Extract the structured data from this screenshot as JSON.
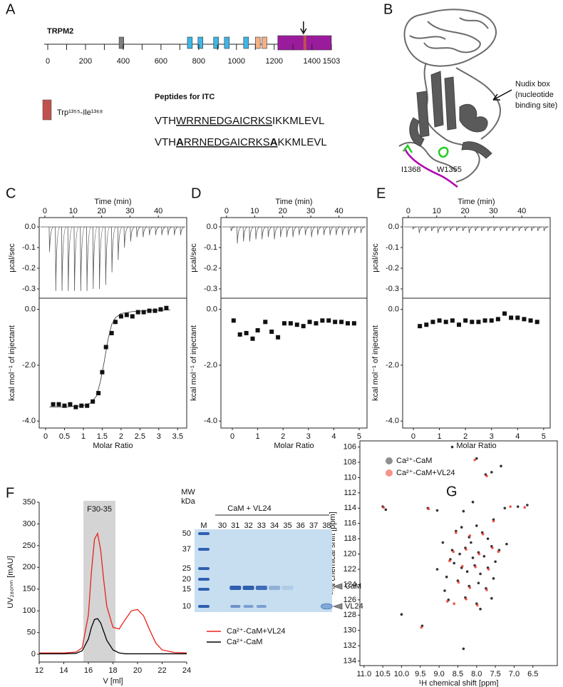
{
  "panel_labels": [
    "A",
    "B",
    "C",
    "D",
    "E",
    "F",
    "G"
  ],
  "domain_map": {
    "protein": "TRPM2",
    "xlim": [
      0,
      1503
    ],
    "xticks": [
      0,
      200,
      400,
      600,
      800,
      1000,
      1200,
      1400,
      1503
    ],
    "minor_ticks": [
      100,
      300,
      500,
      700,
      900,
      1100,
      1300
    ],
    "domains": [
      {
        "start": 378,
        "end": 403,
        "color": "#7f7f7f"
      },
      {
        "start": 740,
        "end": 766,
        "color": "#3fb6e6"
      },
      {
        "start": 796,
        "end": 822,
        "color": "#3fb6e6"
      },
      {
        "start": 879,
        "end": 905,
        "color": "#3fb6e6"
      },
      {
        "start": 936,
        "end": 962,
        "color": "#3fb6e6"
      },
      {
        "start": 1038,
        "end": 1064,
        "color": "#3fb6e6"
      },
      {
        "start": 1100,
        "end": 1126,
        "color": "#f4b183"
      },
      {
        "start": 1135,
        "end": 1161,
        "color": "#f4b183"
      },
      {
        "start": 1219,
        "end": 1503,
        "color": "#9b1b9d"
      },
      {
        "start": 1355,
        "end": 1368,
        "color": "#c0504d"
      }
    ],
    "arrow_at": 1355,
    "legend_label": "Trp¹³⁵⁵-Ile¹³⁶⁸",
    "legend_color": "#c0504d"
  },
  "peptides": {
    "title": "Peptides for ITC",
    "sequences": [
      [
        {
          "text": "VTH"
        },
        {
          "text": "WRRNEDGAICRKS",
          "underline": true
        },
        {
          "text": "IKKMLEVL"
        }
      ],
      [
        {
          "text": "VTH"
        },
        {
          "text": "A",
          "underline": true,
          "bold": true
        },
        {
          "text": "RRNEDGAICRKS",
          "underline": true
        },
        {
          "text": "A",
          "underline": true,
          "bold": true
        },
        {
          "text": "KKMLEVL"
        }
      ]
    ]
  },
  "structure": {
    "annotation": [
      "Nudix box",
      "(nucleotide",
      "binding site)"
    ],
    "labels": [
      "I1368",
      "W1355"
    ]
  },
  "gel": {
    "mw_header": [
      "MW",
      "kDa"
    ],
    "marker_lane": "M",
    "group_label": "CaM + VL24",
    "lanes": [
      "30",
      "31",
      "32",
      "33",
      "34",
      "35",
      "36",
      "37",
      "38"
    ],
    "mw_labels": [
      "50",
      "37",
      "25",
      "20",
      "15",
      "10"
    ],
    "band_labels": [
      "CaM",
      "VL24"
    ]
  },
  "chart_data": [
    {
      "type": "itc-raw",
      "xlabel": "Time (min)",
      "ylabel": "μcal/sec",
      "xlim": [
        -2,
        50
      ],
      "ylim": [
        -0.345,
        0.045
      ],
      "xticks": [
        0,
        10,
        20,
        30,
        40
      ],
      "yticks": [
        {
          "value": 0,
          "label": "0.0"
        },
        -0.1,
        -0.2,
        -0.3
      ],
      "x": [
        1.5,
        3.7,
        5.9,
        8.1,
        10.3,
        12.5,
        14.7,
        16.9,
        19.1,
        21.3,
        23.5,
        25.7,
        27.9,
        30.1,
        32.3,
        34.5,
        36.7,
        38.9,
        41.1,
        43.3,
        45.5,
        47.7
      ],
      "values": [
        -0.12,
        -0.31,
        -0.31,
        -0.31,
        -0.31,
        -0.31,
        -0.31,
        -0.3,
        -0.3,
        -0.28,
        -0.22,
        -0.16,
        -0.1,
        -0.07,
        -0.05,
        -0.05,
        -0.04,
        -0.04,
        -0.04,
        -0.04,
        -0.04,
        -0.04
      ]
    },
    {
      "type": "itc-binding",
      "xlabel": "Molar Ratio",
      "ylabel": "kcal mol⁻¹ of injectant",
      "xlim": [
        -0.17,
        3.74
      ],
      "ylim": [
        -4.25,
        0.4
      ],
      "xticks": [
        0,
        0.5,
        1,
        1.5,
        2,
        2.5,
        3,
        3.5
      ],
      "yticks": [
        {
          "value": 0,
          "label": "0.0"
        },
        {
          "value": -2,
          "label": "-2.0"
        },
        {
          "value": -4,
          "label": "-4.0"
        }
      ],
      "x": [
        0.2,
        0.35,
        0.5,
        0.65,
        0.8,
        0.95,
        1.1,
        1.25,
        1.4,
        1.5,
        1.6,
        1.75,
        1.85,
        2.0,
        2.15,
        2.3,
        2.45,
        2.6,
        2.75,
        2.9,
        3.05,
        3.2
      ],
      "values": [
        -3.4,
        -3.4,
        -3.45,
        -3.4,
        -3.5,
        -3.45,
        -3.45,
        -3.3,
        -3.0,
        -2.25,
        -1.35,
        -0.85,
        -0.45,
        -0.25,
        -0.2,
        -0.25,
        -0.1,
        -0.1,
        -0.05,
        -0.05,
        0.0,
        0.05
      ],
      "fit": {
        "x": [
          0.1,
          0.5,
          1.0,
          1.2,
          1.35,
          1.45,
          1.55,
          1.65,
          1.75,
          1.85,
          2.0,
          2.3,
          2.7,
          3.3
        ],
        "values": [
          -3.5,
          -3.5,
          -3.45,
          -3.35,
          -3.1,
          -2.6,
          -1.9,
          -1.1,
          -0.55,
          -0.3,
          -0.15,
          -0.08,
          -0.04,
          -0.02
        ]
      }
    },
    {
      "type": "itc-raw",
      "xlabel": "Time (min)",
      "ylabel": "μcal/sec",
      "xlim": [
        -2,
        50
      ],
      "ylim": [
        -0.345,
        0.045
      ],
      "xticks": [
        0,
        10,
        20,
        30,
        40
      ],
      "yticks": [
        {
          "value": 0,
          "label": "0.0"
        },
        -0.1,
        -0.2,
        -0.3
      ],
      "x": [
        1.5,
        3.7,
        5.9,
        8.1,
        10.3,
        12.5,
        14.7,
        16.9,
        19.1,
        21.3,
        23.5,
        25.7,
        27.9,
        30.1,
        32.3,
        34.5,
        36.7,
        38.9,
        41.1,
        43.3,
        45.5,
        47.7
      ],
      "values": [
        -0.02,
        -0.08,
        -0.07,
        -0.07,
        -0.06,
        -0.06,
        -0.05,
        -0.06,
        -0.05,
        -0.05,
        -0.05,
        -0.04,
        -0.04,
        -0.05,
        -0.04,
        -0.04,
        -0.04,
        -0.04,
        -0.04,
        -0.04,
        -0.03,
        -0.03
      ]
    },
    {
      "type": "itc-binding",
      "xlabel": "Molar Ratio",
      "ylabel": "kcal mol⁻¹ of injectant",
      "xlim": [
        -0.45,
        5.31
      ],
      "ylim": [
        -4.25,
        0.4
      ],
      "xticks": [
        0,
        1,
        2,
        3,
        4,
        5
      ],
      "yticks": [
        {
          "value": 0,
          "label": "0.0"
        },
        {
          "value": -2,
          "label": "-2.0"
        },
        {
          "value": -4,
          "label": "-4.0"
        }
      ],
      "x": [
        0.05,
        0.3,
        0.55,
        0.8,
        1.0,
        1.3,
        1.55,
        1.8,
        2.05,
        2.3,
        2.55,
        2.8,
        3.05,
        3.3,
        3.55,
        3.8,
        4.05,
        4.3,
        4.55,
        4.8
      ],
      "values": [
        -0.4,
        -0.9,
        -0.85,
        -1.05,
        -0.75,
        -0.45,
        -0.8,
        -1.0,
        -0.5,
        -0.5,
        -0.55,
        -0.6,
        -0.45,
        -0.5,
        -0.4,
        -0.4,
        -0.45,
        -0.45,
        -0.5,
        -0.5
      ]
    },
    {
      "type": "itc-raw",
      "xlabel": "Time (min)",
      "ylabel": "μcal/sec",
      "xlim": [
        -2,
        50
      ],
      "ylim": [
        -0.345,
        0.045
      ],
      "xticks": [
        0,
        10,
        20,
        30,
        40
      ],
      "yticks": [
        {
          "value": 0,
          "label": "0.0"
        },
        -0.1,
        -0.2,
        -0.3
      ],
      "x": [
        1.5,
        3.7,
        5.9,
        8.1,
        10.3,
        12.5,
        14.7,
        16.9,
        19.1,
        21.3,
        23.5,
        25.7,
        27.9,
        30.1,
        32.3,
        34.5,
        36.7,
        38.9,
        41.1,
        43.3,
        45.5,
        47.7
      ],
      "values": [
        -0.01,
        -0.03,
        -0.02,
        -0.02,
        -0.03,
        -0.02,
        -0.02,
        -0.02,
        -0.02,
        -0.03,
        -0.02,
        -0.02,
        -0.02,
        -0.02,
        -0.02,
        -0.02,
        -0.02,
        -0.02,
        -0.02,
        -0.02,
        -0.02,
        -0.02
      ]
    },
    {
      "type": "itc-binding",
      "xlabel": "Molar Ratio",
      "ylabel": "kcal mol⁻¹ of injectant",
      "xlim": [
        -0.41,
        5.25
      ],
      "ylim": [
        -4.25,
        0.4
      ],
      "xticks": [
        0,
        1,
        2,
        3,
        4,
        5
      ],
      "yticks": [
        {
          "value": 0,
          "label": "0.0"
        },
        {
          "value": -2,
          "label": "-2.0"
        },
        {
          "value": -4,
          "label": "-4.0"
        }
      ],
      "x": [
        0.25,
        0.5,
        0.75,
        1.0,
        1.25,
        1.5,
        1.75,
        2.0,
        2.25,
        2.5,
        2.75,
        3.0,
        3.25,
        3.5,
        3.75,
        4.0,
        4.25,
        4.5,
        4.75
      ],
      "values": [
        -0.6,
        -0.55,
        -0.45,
        -0.4,
        -0.45,
        -0.4,
        -0.55,
        -0.4,
        -0.45,
        -0.45,
        -0.4,
        -0.4,
        -0.35,
        -0.15,
        -0.3,
        -0.3,
        -0.35,
        -0.4,
        -0.45
      ]
    },
    {
      "type": "line",
      "xlabel": "V [ml]",
      "ylabel": "UV₂₈₀ₙₘ [mAU]",
      "xlim": [
        12,
        24
      ],
      "ylim": [
        -18,
        350
      ],
      "xticks": [
        12,
        14,
        16,
        18,
        20,
        22,
        24
      ],
      "yticks": [
        0,
        50,
        100,
        150,
        200,
        250,
        300,
        350
      ],
      "shade": {
        "x": [
          15.6,
          18.2
        ],
        "label": "F30-35",
        "color": "#d4d4d4"
      },
      "x": [
        12,
        13,
        14,
        15,
        15.5,
        16,
        16.25,
        16.5,
        16.75,
        17,
        17.25,
        17.5,
        18,
        18.5,
        19,
        19.5,
        20,
        20.5,
        21,
        21.5,
        22,
        23,
        24
      ],
      "series": [
        {
          "name": "Ca²⁺-CaM+VL24",
          "color": "#e8231c",
          "values": [
            3,
            3,
            3,
            5,
            15,
            90,
            190,
            265,
            278,
            240,
            170,
            110,
            62,
            58,
            80,
            100,
            103,
            88,
            55,
            25,
            10,
            4,
            3
          ]
        },
        {
          "name": "Ca²⁺-CaM",
          "color": "#000000",
          "values": [
            1,
            1,
            1,
            2,
            8,
            35,
            62,
            80,
            82,
            72,
            52,
            32,
            10,
            3,
            1,
            1,
            1,
            1,
            1,
            1,
            1,
            1,
            1
          ]
        }
      ]
    },
    {
      "type": "scatter",
      "xlabel": "¹H chemical shift [ppm]",
      "ylabel": "¹⁵N chemical shift [ppm]",
      "xlim": [
        11.11,
        5.85
      ],
      "ylim": [
        134.6,
        105.2
      ],
      "xticks": [
        {
          "value": 11,
          "label": "11.0"
        },
        10.5,
        {
          "value": 10,
          "label": "10.0"
        },
        9.5,
        {
          "value": 9,
          "label": "9.0"
        },
        8.5,
        {
          "value": 8,
          "label": "8.0"
        },
        7.5,
        {
          "value": 7,
          "label": "7.0"
        },
        6.5
      ],
      "yticks": [
        106,
        108,
        110,
        112,
        114,
        116,
        118,
        120,
        122,
        124,
        126,
        128,
        130,
        132,
        134
      ],
      "series": [
        {
          "name": "Ca²⁺-CaM",
          "color": "#333333",
          "x": [
            10.5,
            10.42,
            9.3,
            9.05,
            8.9,
            8.65,
            8.35,
            8.1,
            8.0,
            7.76,
            7.6,
            7.55,
            7.35,
            7.25,
            6.9,
            6.65,
            10.0,
            9.45,
            8.75,
            8.35,
            8.55,
            8.4,
            8.2,
            8.0,
            7.85,
            7.7,
            8.65,
            8.45,
            8.3,
            8.1,
            7.95,
            7.8,
            7.6,
            8.6,
            8.4,
            8.25,
            8.05,
            7.9,
            7.7,
            7.5,
            8.8,
            8.5,
            8.2,
            7.95,
            7.75,
            7.55,
            8.85,
            8.3,
            8.0,
            7.9,
            7.6,
            9.05,
            7.4,
            7.2,
            8.7,
            8.15
          ],
          "values": [
            113.8,
            114.2,
            114.0,
            114.3,
            118.5,
            106.0,
            114.4,
            113.2,
            107.5,
            109.6,
            109.3,
            115.5,
            108.5,
            114.0,
            113.8,
            113.6,
            127.9,
            129.4,
            126.0,
            132.4,
            117.0,
            116.5,
            117.8,
            116.3,
            117.2,
            118.0,
            119.5,
            120.0,
            119.2,
            120.5,
            119.8,
            120.3,
            119.0,
            121.2,
            121.8,
            122.3,
            121.5,
            122.6,
            121.8,
            121.0,
            123.0,
            123.5,
            124.2,
            123.8,
            124.5,
            123.2,
            124.8,
            125.7,
            126.5,
            127.2,
            125.8,
            122.0,
            119.5,
            118.7,
            120.7,
            118.5
          ]
        },
        {
          "name": "Ca²⁺-CaM+VL24",
          "color": "#ef3b2c",
          "x": [
            10.48,
            9.28,
            8.05,
            7.73,
            7.1,
            6.72,
            9.47,
            8.78,
            8.55,
            8.18,
            7.83,
            8.62,
            8.28,
            7.93,
            7.58,
            8.38,
            8.03,
            7.68,
            8.48,
            8.18,
            7.73,
            8.28,
            7.98,
            7.42,
            8.72,
            8.6,
            7.55
          ],
          "values": [
            113.9,
            114.1,
            107.7,
            109.8,
            113.8,
            113.9,
            129.6,
            126.2,
            117.2,
            117.6,
            117.4,
            119.7,
            119.4,
            120.0,
            119.2,
            121.6,
            121.7,
            122.0,
            123.7,
            124.4,
            124.7,
            125.9,
            126.7,
            119.7,
            120.9,
            126.5,
            115.7
          ]
        }
      ]
    }
  ]
}
